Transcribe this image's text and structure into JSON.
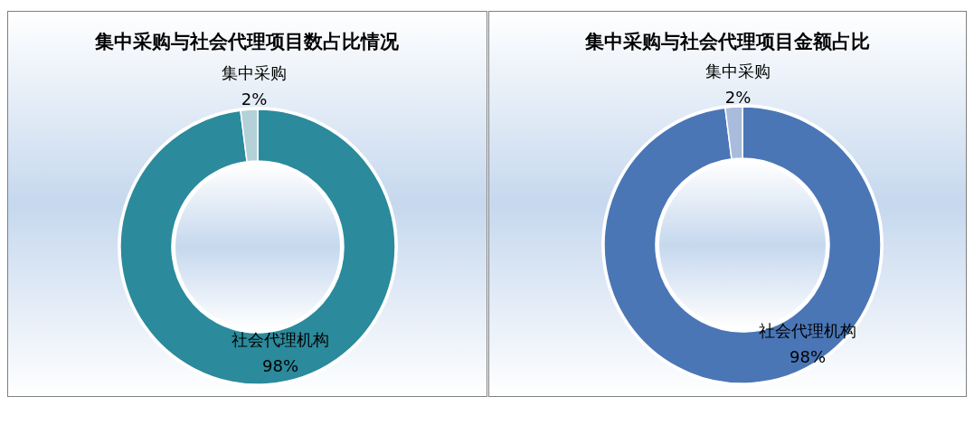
{
  "chart_data": [
    {
      "type": "donut",
      "title": "集中采购与社会代理项目数占比情况",
      "categories": [
        "社会代理机构",
        "集中采购"
      ],
      "values": [
        98,
        2
      ],
      "colors": [
        "#2b8a9c",
        "#b4d0d8"
      ],
      "value_labels": [
        "98%",
        "2%"
      ]
    },
    {
      "type": "donut",
      "title": "集中采购与社会代理项目金额占比",
      "categories": [
        "社会代理机构",
        "集中采购"
      ],
      "values": [
        98,
        2
      ],
      "colors": [
        "#4a76b6",
        "#a9bcdc"
      ],
      "value_labels": [
        "98%",
        "2%"
      ]
    }
  ]
}
